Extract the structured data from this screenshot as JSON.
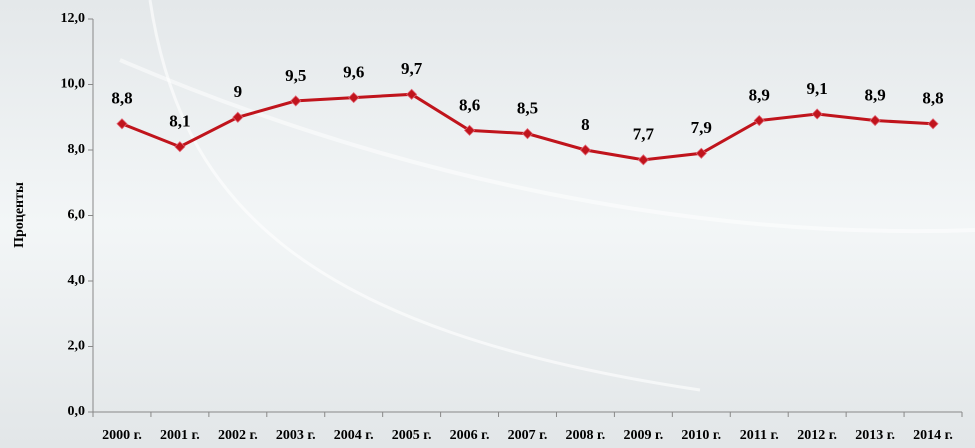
{
  "chart_data": {
    "type": "line",
    "y_label": "Проценты",
    "categories": [
      "2000 г.",
      "2001 г.",
      "2002 г.",
      "2003 г.",
      "2004 г.",
      "2005 г.",
      "2006 г.",
      "2007 г.",
      "2008 г.",
      "2009 г.",
      "2010 г.",
      "2011 г.",
      "2012 г.",
      "2013 г.",
      "2014 г."
    ],
    "values": [
      8.8,
      8.1,
      9,
      9.5,
      9.6,
      9.7,
      8.6,
      8.5,
      8,
      7.7,
      7.9,
      8.9,
      9.1,
      8.9,
      8.8
    ],
    "value_labels": [
      "8,8",
      "8,1",
      "9",
      "9,5",
      "9,6",
      "9,7",
      "8,6",
      "8,5",
      "8",
      "7,7",
      "7,9",
      "8,9",
      "9,1",
      "8,9",
      "8,8"
    ],
    "color": "#c0141c",
    "ylim": [
      0,
      12
    ],
    "yticks": [
      {
        "value": 0,
        "label": "0,0"
      },
      {
        "value": 2,
        "label": "2,0"
      },
      {
        "value": 4,
        "label": "4,0"
      },
      {
        "value": 6,
        "label": "6,0"
      },
      {
        "value": 8,
        "label": "8,0"
      },
      {
        "value": 10,
        "label": "10,0"
      },
      {
        "value": 12,
        "label": "12,0"
      }
    ]
  }
}
